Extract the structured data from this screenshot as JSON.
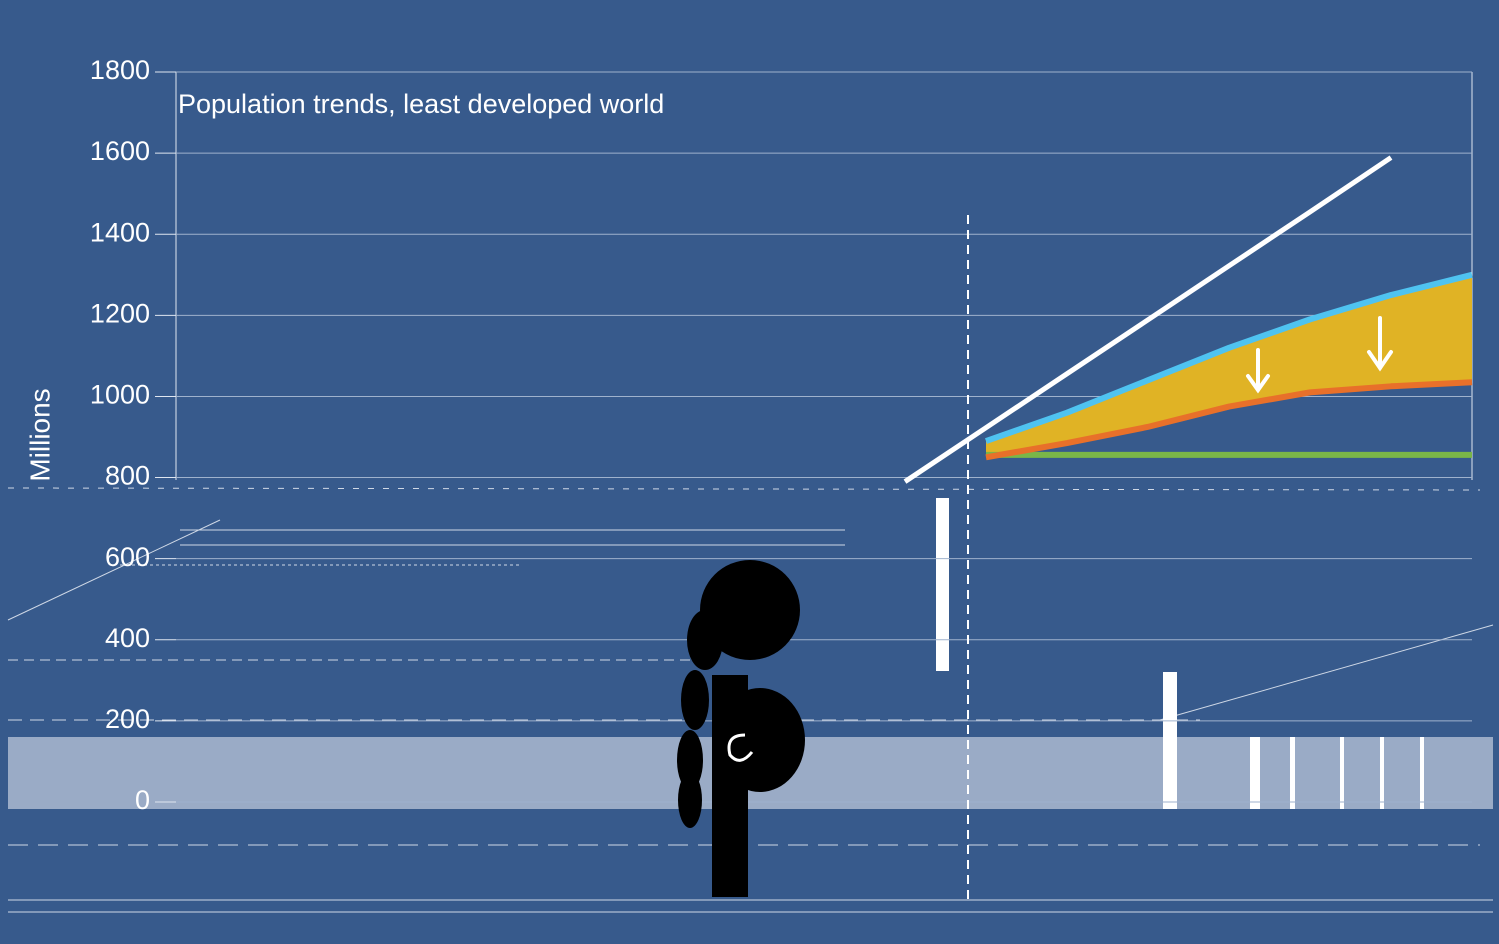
{
  "chart_data": {
    "type": "line",
    "title": "Population trends, least developed world",
    "y_label": "Millions",
    "categories": [
      null,
      null,
      null,
      null,
      null,
      null,
      null,
      null,
      null,
      null,
      null,
      null,
      null,
      null,
      null,
      null,
      null
    ],
    "series": [
      {
        "color": "#ffffff",
        "values": [
          null,
          null,
          null,
          null,
          null,
          null,
          null,
          null,
          null,
          790,
          923,
          1056,
          1189,
          1322,
          1455,
          1589,
          null
        ]
      },
      {
        "color": "#4fc3f0",
        "values": [
          null,
          null,
          null,
          null,
          null,
          null,
          null,
          null,
          null,
          null,
          890,
          960,
          1040,
          1120,
          1190,
          1250,
          1300
        ]
      },
      {
        "color": "#e8702a",
        "values": [
          null,
          null,
          null,
          null,
          null,
          null,
          null,
          null,
          null,
          null,
          850,
          885,
          925,
          975,
          1010,
          1025,
          1035
        ]
      },
      {
        "color": "#7ab648",
        "values": [
          null,
          null,
          null,
          null,
          null,
          null,
          null,
          null,
          null,
          null,
          856,
          856,
          856,
          856,
          856,
          856,
          856
        ]
      }
    ],
    "band_between": [
      1,
      2
    ],
    "band_color": "#e0b325",
    "ylim": [
      0,
      1800
    ],
    "yticks": [
      0,
      200,
      400,
      600,
      800,
      1000,
      1200,
      1400,
      1600,
      1800
    ],
    "grid": true
  }
}
